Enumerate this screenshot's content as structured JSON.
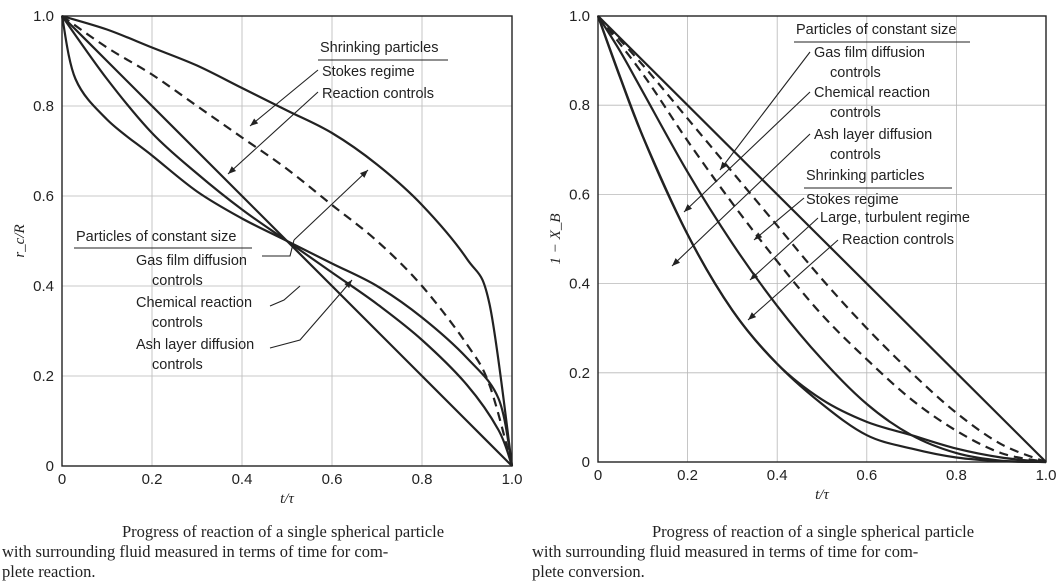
{
  "chart_data": [
    {
      "type": "line",
      "title": "",
      "xlabel": "t/τ",
      "ylabel": "r_c/R",
      "xlim": [
        0,
        1
      ],
      "ylim": [
        0,
        1
      ],
      "x_ticks": [
        "0",
        "0.2",
        "0.4",
        "0.6",
        "0.8",
        "1.0"
      ],
      "y_ticks": [
        "0",
        "0.2",
        "0.4",
        "0.6",
        "0.8",
        "1.0"
      ],
      "grid": true,
      "series": [
        {
          "style": "solid",
          "x": [
            0,
            0.1,
            0.2,
            0.3,
            0.4,
            0.5,
            0.6,
            0.7,
            0.8,
            0.9,
            0.95,
            1.0
          ],
          "y": [
            1.0,
            0.97,
            0.93,
            0.89,
            0.84,
            0.79,
            0.74,
            0.67,
            0.58,
            0.46,
            0.36,
            0.0
          ]
        },
        {
          "style": "dashed",
          "x": [
            0,
            0.1,
            0.2,
            0.3,
            0.4,
            0.5,
            0.6,
            0.7,
            0.8,
            0.9,
            0.95,
            1.0
          ],
          "y": [
            1.0,
            0.93,
            0.87,
            0.8,
            0.73,
            0.66,
            0.58,
            0.5,
            0.4,
            0.27,
            0.18,
            0.0
          ]
        },
        {
          "style": "solid",
          "x": [
            0,
            0.1,
            0.2,
            0.3,
            0.4,
            0.5,
            0.6,
            0.7,
            0.8,
            0.9,
            0.97,
            1.0
          ],
          "y": [
            1.0,
            0.86,
            0.74,
            0.65,
            0.57,
            0.5,
            0.43,
            0.36,
            0.28,
            0.18,
            0.08,
            0.0
          ]
        },
        {
          "style": "solid",
          "x": [
            0,
            0.1,
            0.2,
            0.3,
            0.4,
            0.5,
            0.6,
            0.7,
            0.8,
            0.9,
            1.0
          ],
          "y": [
            1.0,
            0.9,
            0.8,
            0.7,
            0.6,
            0.5,
            0.4,
            0.3,
            0.2,
            0.1,
            0.0
          ]
        },
        {
          "style": "solid",
          "x": [
            0,
            0.03,
            0.1,
            0.2,
            0.3,
            0.4,
            0.5,
            0.6,
            0.7,
            0.8,
            0.9,
            0.97,
            1.0
          ],
          "y": [
            1.0,
            0.86,
            0.77,
            0.69,
            0.61,
            0.55,
            0.5,
            0.45,
            0.4,
            0.33,
            0.24,
            0.15,
            0.0
          ]
        }
      ],
      "annotations": {
        "group1_title": "Shrinking particles",
        "group1_items": [
          "Stokes regime",
          "Reaction controls"
        ],
        "group2_title": "Particles of constant size",
        "group2_items": [
          [
            "Gas film diffusion",
            "controls"
          ],
          [
            "Chemical reaction",
            "controls"
          ],
          [
            "Ash layer diffusion",
            "controls"
          ]
        ]
      }
    },
    {
      "type": "line",
      "title": "",
      "xlabel": "t/τ",
      "ylabel": "1 − X_B",
      "xlim": [
        0,
        1
      ],
      "ylim": [
        0,
        1
      ],
      "x_ticks": [
        "0",
        "0.2",
        "0.4",
        "0.6",
        "0.8",
        "1.0"
      ],
      "y_ticks": [
        "0",
        "0.2",
        "0.4",
        "0.6",
        "0.8",
        "1.0"
      ],
      "grid": true,
      "series": [
        {
          "style": "solid",
          "x": [
            0,
            1.0
          ],
          "y": [
            1.0,
            0.0
          ]
        },
        {
          "style": "solid",
          "x": [
            0,
            0.05,
            0.1,
            0.2,
            0.3,
            0.4,
            0.5,
            0.6,
            0.7,
            0.8,
            0.9,
            1.0
          ],
          "y": [
            1.0,
            0.86,
            0.73,
            0.51,
            0.34,
            0.22,
            0.13,
            0.06,
            0.03,
            0.01,
            0.002,
            0.0
          ]
        },
        {
          "style": "solid",
          "x": [
            0,
            0.05,
            0.1,
            0.2,
            0.3,
            0.4,
            0.5,
            0.6,
            0.7,
            0.8,
            0.9,
            1.0
          ],
          "y": [
            1.0,
            0.92,
            0.83,
            0.65,
            0.49,
            0.35,
            0.23,
            0.13,
            0.06,
            0.02,
            0.003,
            0.0
          ]
        },
        {
          "style": "dashed",
          "x": [
            0,
            0.1,
            0.2,
            0.3,
            0.4,
            0.5,
            0.6,
            0.7,
            0.8,
            0.9,
            1.0
          ],
          "y": [
            1.0,
            0.87,
            0.72,
            0.58,
            0.45,
            0.33,
            0.23,
            0.14,
            0.07,
            0.02,
            0.0
          ]
        },
        {
          "style": "dashed",
          "x": [
            0,
            0.1,
            0.2,
            0.3,
            0.4,
            0.5,
            0.6,
            0.7,
            0.8,
            0.9,
            1.0
          ],
          "y": [
            1.0,
            0.89,
            0.77,
            0.65,
            0.53,
            0.41,
            0.3,
            0.2,
            0.11,
            0.04,
            0.0
          ]
        },
        {
          "style": "solid",
          "x": [
            0,
            0.1,
            0.2,
            0.3,
            0.4,
            0.5,
            0.6,
            0.7,
            0.8,
            0.9,
            1.0
          ],
          "y": [
            1.0,
            0.73,
            0.51,
            0.34,
            0.22,
            0.14,
            0.09,
            0.06,
            0.03,
            0.01,
            0.0
          ]
        }
      ],
      "annotations": {
        "group1_title": "Particles of constant size",
        "group1_items": [
          [
            "Gas film diffusion",
            "controls"
          ],
          [
            "Chemical reaction",
            "controls"
          ],
          [
            "Ash layer diffusion",
            "controls"
          ]
        ],
        "group2_title": "Shrinking particles",
        "group2_items": [
          "Stokes regime",
          "Large, turbulent regime",
          "Reaction controls"
        ]
      }
    }
  ],
  "captions": {
    "left": {
      "line1": "Progress of reaction of a single spherical particle",
      "line2": "with surrounding fluid measured in terms of time for com-",
      "line3": "plete reaction."
    },
    "right": {
      "line1": "Progress of reaction of a single spherical particle",
      "line2": "with surrounding fluid measured in terms of time for com-",
      "line3": "plete conversion."
    }
  }
}
